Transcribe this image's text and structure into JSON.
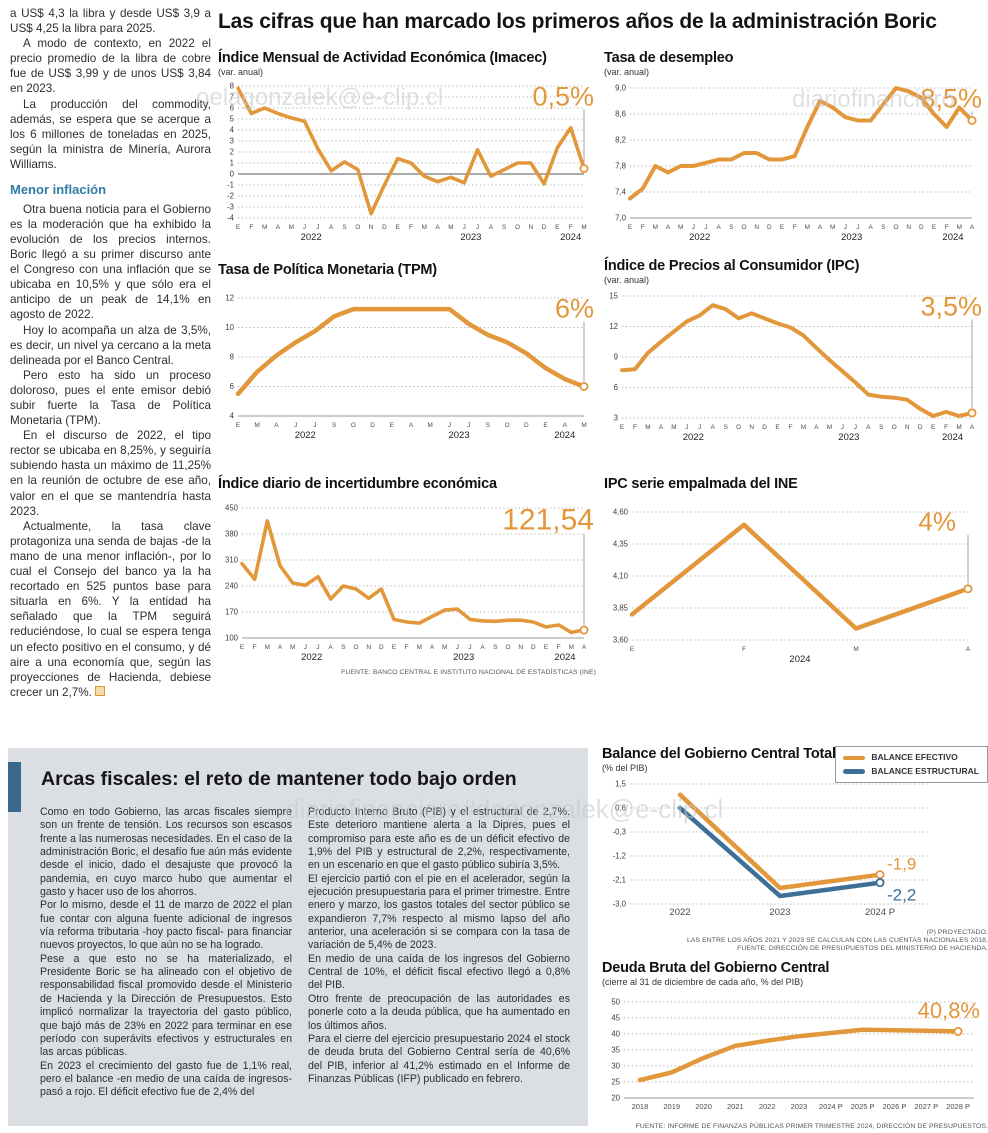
{
  "palette": {
    "orange": "#E2973B",
    "blue": "#3E6F96",
    "panel_bg": "#DBDFE4",
    "accent_bar": "#3A698E",
    "subhead_blue": "#2E7CA7"
  },
  "watermarks": {
    "left": "oelagonzalek@e-clip.cl",
    "right": "diariofinanciero",
    "bottom": "diariofinanciero#dagonzalek@e-clip.cl"
  },
  "main_title": "Las cifras que han marcado los primeros años de la administración Boric",
  "left_article": {
    "p1": "a US$ 4,3 la libra y desde US$ 3,9 a US$ 4,25 la libra para 2025.",
    "p2": "A modo de contexto, en 2022 el precio promedio de la libra de cobre fue de US$ 3,99 y de unos US$ 3,84 en 2023.",
    "p3": "La producción del commodity, además, se espera que se acerque a los 6 millones de toneladas en 2025, según la ministra de Minería, Aurora Williams.",
    "subhead": "Menor inflación",
    "p4": "Otra buena noticia para el Gobierno es la moderación que ha exhibido la evolución de los precios internos. Boric llegó a su primer discurso ante el Congreso con una inflación que se ubicaba en 10,5% y que sólo era el anticipo de un peak de 14,1% en agosto de 2022.",
    "p5": "Hoy lo acompaña un alza de 3,5%, es decir, un nivel ya cercano a la meta delineada por el Banco Central.",
    "p6": "Pero esto ha sido un proceso doloroso, pues el ente emisor debió subir fuerte la Tasa de Política Monetaria (TPM).",
    "p7": "En el discurso de 2022, el tipo rector se ubicaba en 8,25%, y seguiría subiendo hasta un máximo de 11,25% en la reunión de octubre de ese año, valor en el que se mantendría hasta 2023.",
    "p8": "Actualmente, la tasa clave protagoniza una senda de bajas -de la mano de una menor inflación-, por lo cual el Consejo del banco ya la ha recortado en 525 puntos base para situarla en 6%. Y la entidad ha señalado que la TPM seguirá reduciéndose, lo cual se espera tenga un efecto positivo en el consumo, y dé aire a una economía que, según las proyecciones de Hacienda, debiese crecer un 2,7%."
  },
  "chart_data": [
    {
      "id": "imacec",
      "type": "line",
      "title": "Índice Mensual de Actividad Económica (Imacec)",
      "subtitle": "(var. anual)",
      "big_label": "0,5%",
      "ymin": -4,
      "ymax": 8,
      "yticks": [
        {
          "v": 8,
          "l": "8"
        },
        {
          "v": 7,
          "l": "7"
        },
        {
          "v": 6,
          "l": "6"
        },
        {
          "v": 5,
          "l": "5"
        },
        {
          "v": 4,
          "l": "4"
        },
        {
          "v": 3,
          "l": "3"
        },
        {
          "v": 2,
          "l": "2"
        },
        {
          "v": 1,
          "l": "1"
        },
        {
          "v": 0,
          "l": "0"
        },
        {
          "v": -1,
          "l": "-1"
        },
        {
          "v": -2,
          "l": "-2"
        },
        {
          "v": -3,
          "l": "-3"
        },
        {
          "v": -4,
          "l": "-4"
        }
      ],
      "zero_line": 0,
      "x_labels": [
        "E",
        "F",
        "M",
        "A",
        "M",
        "J",
        "J",
        "A",
        "S",
        "O",
        "N",
        "D",
        "E",
        "F",
        "M",
        "A",
        "M",
        "J",
        "J",
        "A",
        "S",
        "O",
        "N",
        "D",
        "E",
        "F",
        "M"
      ],
      "years": [
        {
          "label": "2022",
          "span": 12
        },
        {
          "label": "2023",
          "span": 12
        },
        {
          "label": "2024",
          "span": 3
        }
      ],
      "series": [
        {
          "name": "Imacec",
          "color": "orange",
          "values": [
            7.8,
            5.5,
            6.0,
            5.5,
            5.1,
            4.8,
            2.3,
            0.3,
            1.1,
            0.4,
            -3.6,
            -1.0,
            1.4,
            1.0,
            -0.2,
            -0.7,
            -0.3,
            -0.8,
            2.2,
            -0.2,
            0.4,
            1.0,
            1.0,
            -0.9,
            2.4,
            4.2,
            0.5
          ]
        }
      ]
    },
    {
      "id": "desempleo",
      "type": "line",
      "title": "Tasa de desempleo",
      "subtitle": "(var. anual)",
      "big_label": "8,5%",
      "ymin": 7.0,
      "ymax": 9.0,
      "yticks": [
        {
          "v": 9.0,
          "l": "9,0"
        },
        {
          "v": 8.6,
          "l": "8,6"
        },
        {
          "v": 8.2,
          "l": "8,2"
        },
        {
          "v": 7.8,
          "l": "7,8"
        },
        {
          "v": 7.4,
          "l": "7,4"
        },
        {
          "v": 7.0,
          "l": "7,0"
        }
      ],
      "x_labels": [
        "E",
        "F",
        "M",
        "A",
        "M",
        "J",
        "J",
        "A",
        "S",
        "O",
        "N",
        "D",
        "E",
        "F",
        "M",
        "A",
        "M",
        "J",
        "J",
        "A",
        "S",
        "O",
        "N",
        "D",
        "E",
        "F",
        "M",
        "A"
      ],
      "years": [
        {
          "label": "2022",
          "span": 12
        },
        {
          "label": "2023",
          "span": 12
        },
        {
          "label": "2024",
          "span": 4
        }
      ],
      "series": [
        {
          "name": "Tasa de desempleo",
          "color": "orange",
          "values": [
            7.3,
            7.45,
            7.8,
            7.7,
            7.8,
            7.8,
            7.85,
            7.9,
            7.9,
            8.0,
            8.0,
            7.9,
            7.9,
            7.95,
            8.4,
            8.8,
            8.7,
            8.55,
            8.5,
            8.5,
            8.75,
            9.0,
            8.95,
            8.85,
            8.6,
            8.4,
            8.7,
            8.5
          ]
        }
      ]
    },
    {
      "id": "tpm",
      "type": "line",
      "title": "Tasa de Política Monetaria (TPM)",
      "subtitle": "",
      "big_label": "6%",
      "ymin": 4,
      "ymax": 12,
      "yticks": [
        {
          "v": 12,
          "l": "12"
        },
        {
          "v": 10,
          "l": "10"
        },
        {
          "v": 8,
          "l": "8"
        },
        {
          "v": 6,
          "l": "6"
        },
        {
          "v": 4,
          "l": "4"
        }
      ],
      "x_labels": [
        "E",
        "M",
        "A",
        "J",
        "J",
        "S",
        "O",
        "D",
        "E",
        "A",
        "M",
        "J",
        "J",
        "S",
        "O",
        "D",
        "E",
        "A",
        "M"
      ],
      "years": [
        {
          "label": "2022",
          "span": 8
        },
        {
          "label": "2023",
          "span": 8
        },
        {
          "label": "2024",
          "span": 3
        }
      ],
      "series": [
        {
          "name": "TPM",
          "color": "orange",
          "values": [
            5.5,
            7.0,
            8.1,
            9.0,
            9.75,
            10.75,
            11.25,
            11.25,
            11.25,
            11.25,
            11.25,
            11.25,
            10.25,
            9.5,
            9.0,
            8.25,
            7.25,
            6.5,
            6.0
          ]
        }
      ]
    },
    {
      "id": "ipc",
      "type": "line",
      "title": "Índice de Precios al Consumidor (IPC)",
      "subtitle": "(var. anual)",
      "big_label": "3,5%",
      "ymin": 3,
      "ymax": 15,
      "yticks": [
        {
          "v": 15,
          "l": "15"
        },
        {
          "v": 12,
          "l": "12"
        },
        {
          "v": 9,
          "l": "9"
        },
        {
          "v": 6,
          "l": "6"
        },
        {
          "v": 3,
          "l": "3"
        }
      ],
      "x_labels": [
        "E",
        "F",
        "M",
        "A",
        "M",
        "J",
        "J",
        "A",
        "S",
        "O",
        "N",
        "D",
        "E",
        "F",
        "M",
        "A",
        "M",
        "J",
        "J",
        "A",
        "S",
        "O",
        "N",
        "D",
        "E",
        "F",
        "M",
        "A"
      ],
      "years": [
        {
          "label": "2022",
          "span": 12
        },
        {
          "label": "2023",
          "span": 12
        },
        {
          "label": "2024",
          "span": 4
        }
      ],
      "series": [
        {
          "name": "IPC",
          "color": "orange",
          "values": [
            7.7,
            7.8,
            9.4,
            10.5,
            11.5,
            12.5,
            13.1,
            14.1,
            13.7,
            12.8,
            13.3,
            12.8,
            12.3,
            11.9,
            11.1,
            9.9,
            8.7,
            7.6,
            6.5,
            5.3,
            5.1,
            5.0,
            4.8,
            3.9,
            3.2,
            3.6,
            3.2,
            3.5
          ]
        }
      ]
    },
    {
      "id": "incertidumbre",
      "type": "line",
      "title": "Índice diario de incertidumbre económica",
      "subtitle": "",
      "big_label": "121,54",
      "ymin": 100,
      "ymax": 450,
      "yticks": [
        {
          "v": 450,
          "l": "450"
        },
        {
          "v": 380,
          "l": "380"
        },
        {
          "v": 310,
          "l": "310"
        },
        {
          "v": 240,
          "l": "240"
        },
        {
          "v": 170,
          "l": "170"
        },
        {
          "v": 100,
          "l": "100"
        }
      ],
      "x_labels": [
        "E",
        "F",
        "M",
        "A",
        "M",
        "J",
        "J",
        "A",
        "S",
        "O",
        "N",
        "D",
        "E",
        "F",
        "M",
        "A",
        "M",
        "J",
        "J",
        "A",
        "S",
        "O",
        "N",
        "D",
        "E",
        "F",
        "M",
        "A"
      ],
      "years": [
        {
          "label": "2022",
          "span": 12
        },
        {
          "label": "2023",
          "span": 12
        },
        {
          "label": "2024",
          "span": 4
        }
      ],
      "series": [
        {
          "name": "Incertidumbre económica",
          "color": "orange",
          "values": [
            300,
            258,
            415,
            295,
            248,
            242,
            265,
            205,
            240,
            232,
            207,
            232,
            150,
            143,
            140,
            158,
            175,
            178,
            150,
            146,
            145,
            148,
            148,
            143,
            130,
            135,
            115,
            121.54
          ]
        }
      ],
      "footer": "FUENTE: BANCO CENTRAL E INSTITUTO NACIONAL DE ESTADÍSTICAS (INE)"
    },
    {
      "id": "ipc-ine",
      "type": "line",
      "title": "IPC serie empalmada del INE",
      "subtitle": "",
      "big_label": "4%",
      "ymin": 3.6,
      "ymax": 4.6,
      "yticks": [
        {
          "v": 4.6,
          "l": "4,60"
        },
        {
          "v": 4.35,
          "l": "4,35"
        },
        {
          "v": 4.1,
          "l": "4,10"
        },
        {
          "v": 3.85,
          "l": "3,85"
        },
        {
          "v": 3.6,
          "l": "3,60"
        }
      ],
      "x_labels": [
        "E",
        "F",
        "M",
        "A"
      ],
      "years": [
        {
          "label": "2024",
          "span": 4
        }
      ],
      "series": [
        {
          "name": "IPC serie empalmada",
          "color": "orange",
          "values": [
            3.8,
            4.5,
            3.69,
            4.0
          ]
        }
      ]
    },
    {
      "id": "balance",
      "type": "line",
      "title": "Balance del Gobierno Central Total",
      "subtitle": "(% del PIB)",
      "legend": [
        "BALANCE EFECTIVO",
        "BALANCE ESTRUCTURAL"
      ],
      "ymin": -3.0,
      "ymax": 1.5,
      "yticks": [
        {
          "v": 1.5,
          "l": "1,5"
        },
        {
          "v": 0.6,
          "l": "0,6"
        },
        {
          "v": -0.3,
          "l": "-0,3"
        },
        {
          "v": -1.2,
          "l": "-1,2"
        },
        {
          "v": -2.1,
          "l": "-2,1"
        },
        {
          "v": -3.0,
          "l": "-3,0"
        }
      ],
      "x_labels": [
        "2022",
        "2023",
        "2024 P"
      ],
      "series": [
        {
          "name": "Balance efectivo",
          "color": "orange",
          "values": [
            1.1,
            -2.4,
            -1.9
          ],
          "end_label": "-1,9"
        },
        {
          "name": "Balance estructural",
          "color": "blue",
          "values": [
            0.6,
            -2.7,
            -2.2
          ],
          "end_label": "-2,2"
        }
      ],
      "footers": [
        "(P) PROYECTADO.",
        "LAS ENTRE LOS AÑOS 2021 Y 2023 SE CALCULAN CON LAS CUENTAS NACIONALES 2018.",
        "FUENTE: DIRECCIÓN DE PRESUPUESTOS DEL MINISTERIO DE HACIENDA."
      ]
    },
    {
      "id": "deuda",
      "type": "line",
      "title": "Deuda Bruta del Gobierno Central",
      "subtitle": "(cierre al 31 de diciembre de cada año, % del PIB)",
      "big_label": "40,8%",
      "ymin": 20,
      "ymax": 50,
      "yticks": [
        {
          "v": 50,
          "l": "50"
        },
        {
          "v": 45,
          "l": "45"
        },
        {
          "v": 40,
          "l": "40"
        },
        {
          "v": 35,
          "l": "35"
        },
        {
          "v": 30,
          "l": "30"
        },
        {
          "v": 25,
          "l": "25"
        },
        {
          "v": 20,
          "l": "20"
        }
      ],
      "x_labels": [
        "2018",
        "2019",
        "2020",
        "2021",
        "2022",
        "2023",
        "2024 P",
        "2025 P",
        "2026 P",
        "2027 P",
        "2028 P"
      ],
      "series": [
        {
          "name": "Deuda bruta",
          "color": "orange",
          "values": [
            25.6,
            28.0,
            32.5,
            36.3,
            37.9,
            39.3,
            40.3,
            41.3,
            41.2,
            41.0,
            40.8
          ]
        }
      ],
      "footer": "FUENTE: INFORME DE FINANZAS PÚBLICAS PRIMER TRIMESTRE 2024, DIRECCIÓN DE PRESUPUESTOS."
    }
  ],
  "bottom": {
    "headline": "Arcas fiscales: el reto de mantener todo bajo orden",
    "col1": {
      "p1": "Como en todo Gobierno, las arcas fiscales siempre son un frente de tensión. Los recursos son escasos frente a las numerosas necesidades. En el caso de la administración Boric, el desafío fue aún más evidente desde el inicio, dado el desajuste que provocó la pandemia, en cuyo marco hubo que aumentar el gasto y hacer uso de los ahorros.",
      "p2": "Por lo mismo, desde el 11 de marzo de 2022 el plan fue contar con alguna fuente adicional de ingresos vía reforma tributaria -hoy pacto fiscal- para financiar nuevos proyectos, lo que aún no se ha logrado.",
      "p3": "Pese a que esto no se ha materializado, el Presidente Boric se ha alineado con el objetivo de responsabilidad fiscal promovido desde el Ministerio de Hacienda y la Dirección de Presupuestos. Esto implicó normalizar la trayectoria del gasto público, que bajó más de 23% en 2022 para terminar en ese período con superávits efectivos y estructurales en las arcas públicas.",
      "p4": "En 2023 el crecimiento del gasto fue de 1,1% real, pero el balance -en medio de una caída de ingresos-  pasó a rojo. El déficit efectivo fue de 2,4% del"
    },
    "col2": {
      "p1": "Producto Interno Bruto (PIB) y el estructural de 2,7%. Este deterioro mantiene alerta a la Dipres, pues el compromiso para este año es de un déficit efectivo de 1,9% del PIB y estructural de 2,2%, respectivamente, en un escenario en que el gasto público subiría 3,5%.",
      "p2": "El ejercicio partió con el pie en el acelerador, según la ejecución presupuestaria para el primer trimestre. Entre enero y marzo, los gastos totales del sector público se expandieron 7,7% respecto al mismo lapso del año anterior, una aceleración si se compara con la tasa de variación de 5,4% de 2023.",
      "p3": "En medio de una caída de los ingresos del Gobierno Central de 10%, el déficit fiscal efectivo llegó a 0,8% del PIB.",
      "p4": "Otro frente de preocupación de las autoridades es ponerle coto a la deuda pública, que ha aumentado en los últimos años.",
      "p5": "Para el cierre del ejercicio presupuestario 2024 el stock de deuda bruta del Gobierno Central sería de 40,6% del PIB, inferior al 41,2% estimado en el Informe de Finanzas Públicas (IFP) publicado en febrero."
    }
  }
}
